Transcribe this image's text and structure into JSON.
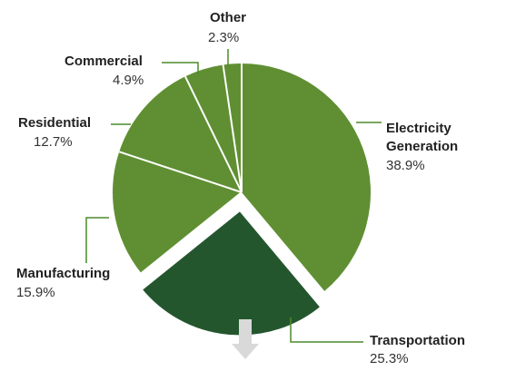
{
  "chart_data": {
    "type": "pie",
    "title": "",
    "slices": [
      {
        "label": "Electricity",
        "label2": "Generation",
        "value": 38.9,
        "display": "38.9%"
      },
      {
        "label": "Transportation",
        "value": 25.3,
        "display": "25.3%",
        "exploded": true
      },
      {
        "label": "Manufacturing",
        "value": 15.9,
        "display": "15.9%"
      },
      {
        "label": "Residential",
        "value": 12.7,
        "display": "12.7%"
      },
      {
        "label": "Commercial",
        "value": 4.9,
        "display": "4.9%"
      },
      {
        "label": "Other",
        "value": 2.3,
        "display": "2.3%"
      }
    ],
    "legend": "none"
  },
  "colors": {
    "slice_fill": "#5f8f32",
    "exploded_fill": "#24562e",
    "separator": "#ffffff",
    "leader_line": "#4c8a2a",
    "arrow_fill": "#d9d9d9"
  },
  "icons": {
    "exploded_slice_marker": "down-arrow-icon"
  }
}
